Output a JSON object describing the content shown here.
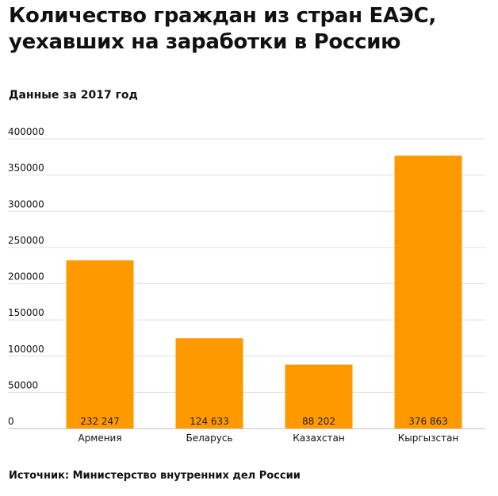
{
  "title": "Количество граждан из стран ЕАЭС, уехавших на заработки в Россию",
  "subtitle": "Данные за 2017 год",
  "source": "Источник: Министерство внутренних дел России",
  "colors": {
    "bar": "#ff9900",
    "grid": "#e0e0e0",
    "axis": "#bbbbbb"
  },
  "chart_data": {
    "type": "bar",
    "categories": [
      "Армения",
      "Беларусь",
      "Казахстан",
      "Кыргызстан"
    ],
    "values": [
      232247,
      124633,
      88202,
      376863
    ],
    "value_labels": [
      "232 247",
      "124 633",
      "88 202",
      "376 863"
    ],
    "yticks": [
      0,
      50000,
      100000,
      150000,
      200000,
      250000,
      300000,
      350000,
      400000
    ],
    "ytick_labels": [
      "0",
      "50000",
      "100000",
      "150000",
      "200000",
      "250000",
      "300000",
      "350000",
      "400000"
    ],
    "ylim": [
      0,
      400000
    ],
    "grid": true,
    "legend": "none"
  }
}
